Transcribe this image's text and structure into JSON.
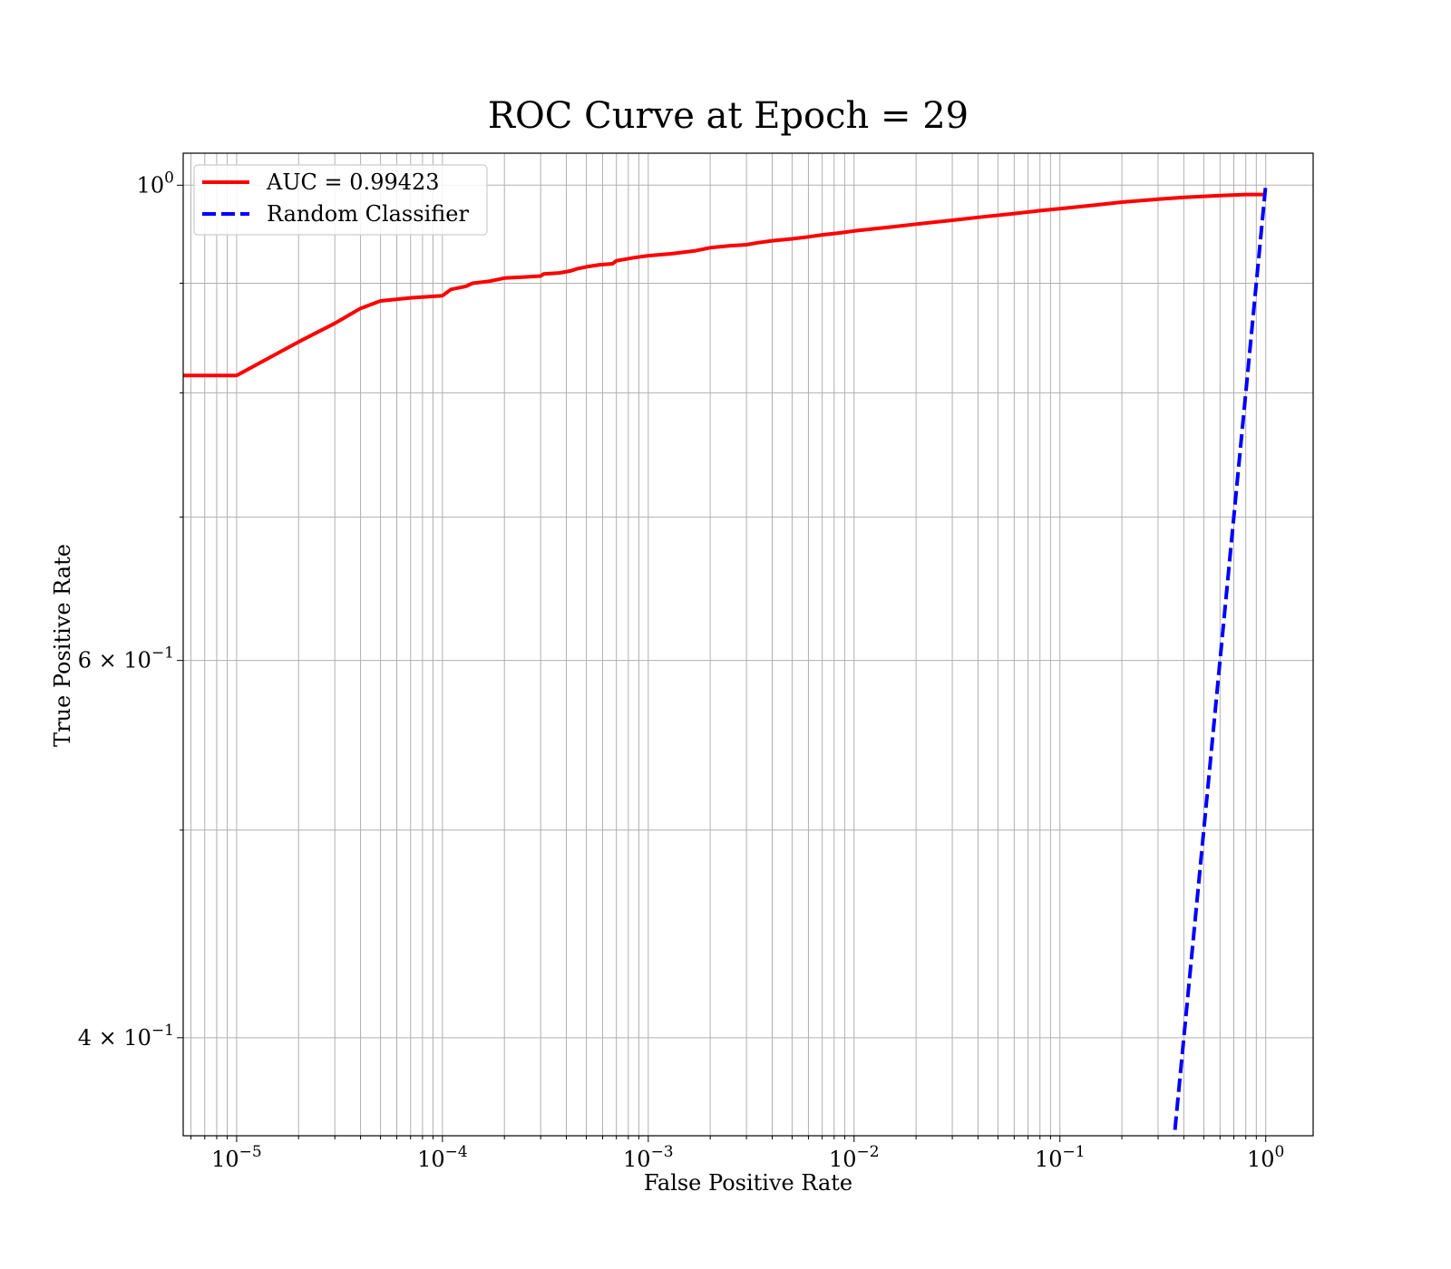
{
  "chart_data": {
    "type": "line",
    "title": "ROC Curve at Epoch = 29",
    "xlabel": "False Positive Rate",
    "ylabel": "True Positive Rate",
    "xscale": "log",
    "yscale": "log",
    "xlim": [
      5.5e-06,
      1.7
    ],
    "ylim": [
      0.36,
      1.035
    ],
    "grid": true,
    "legend_position": "top-left",
    "x_ticks": [
      {
        "value": 1e-05,
        "base": "10",
        "exp": "−5"
      },
      {
        "value": 0.0001,
        "base": "10",
        "exp": "−4"
      },
      {
        "value": 0.001,
        "base": "10",
        "exp": "−3"
      },
      {
        "value": 0.01,
        "base": "10",
        "exp": "−2"
      },
      {
        "value": 0.1,
        "base": "10",
        "exp": "−1"
      },
      {
        "value": 1,
        "base": "10",
        "exp": "0"
      }
    ],
    "y_ticks": [
      {
        "value": 1.0,
        "base": "10",
        "exp": "0"
      },
      {
        "value": 0.6,
        "base": "6 × 10",
        "exp": "−1"
      },
      {
        "value": 0.4,
        "base": "4 × 10",
        "exp": "−1"
      }
    ],
    "series": [
      {
        "name": "AUC = 0.99423",
        "color": "#ff0000",
        "style": "solid",
        "x": [
          5.5e-06,
          1e-05,
          2e-05,
          3e-05,
          4e-05,
          5e-05,
          7e-05,
          0.0001,
          0.00011,
          0.00013,
          0.00014,
          0.00017,
          0.0002,
          0.00025,
          0.0003,
          0.00031,
          0.00037,
          0.00042,
          0.00045,
          0.0005,
          0.00058,
          0.00067,
          0.0007,
          0.00085,
          0.001,
          0.0013,
          0.0017,
          0.002,
          0.0025,
          0.003,
          0.0034,
          0.004,
          0.005,
          0.006,
          0.007,
          0.0085,
          0.01,
          0.015,
          0.02,
          0.03,
          0.04,
          0.06,
          0.08,
          0.1,
          0.15,
          0.2,
          0.3,
          0.4,
          0.6,
          0.8,
          1.0
        ],
        "y": [
          0.815,
          0.815,
          0.845,
          0.862,
          0.876,
          0.883,
          0.886,
          0.888,
          0.894,
          0.897,
          0.9,
          0.902,
          0.905,
          0.906,
          0.907,
          0.909,
          0.91,
          0.912,
          0.914,
          0.916,
          0.918,
          0.919,
          0.922,
          0.925,
          0.927,
          0.929,
          0.932,
          0.935,
          0.937,
          0.938,
          0.94,
          0.942,
          0.944,
          0.946,
          0.948,
          0.95,
          0.952,
          0.956,
          0.959,
          0.963,
          0.966,
          0.97,
          0.973,
          0.975,
          0.979,
          0.982,
          0.985,
          0.987,
          0.989,
          0.99,
          0.99
        ]
      },
      {
        "name": "Random Classifier",
        "color": "#0000ff",
        "style": "dashed",
        "x": [
          0.355,
          0.4,
          0.5,
          0.6,
          0.7,
          0.8,
          0.9,
          1.0
        ],
        "y": [
          0.355,
          0.4,
          0.5,
          0.6,
          0.7,
          0.8,
          0.9,
          1.0
        ]
      }
    ]
  }
}
